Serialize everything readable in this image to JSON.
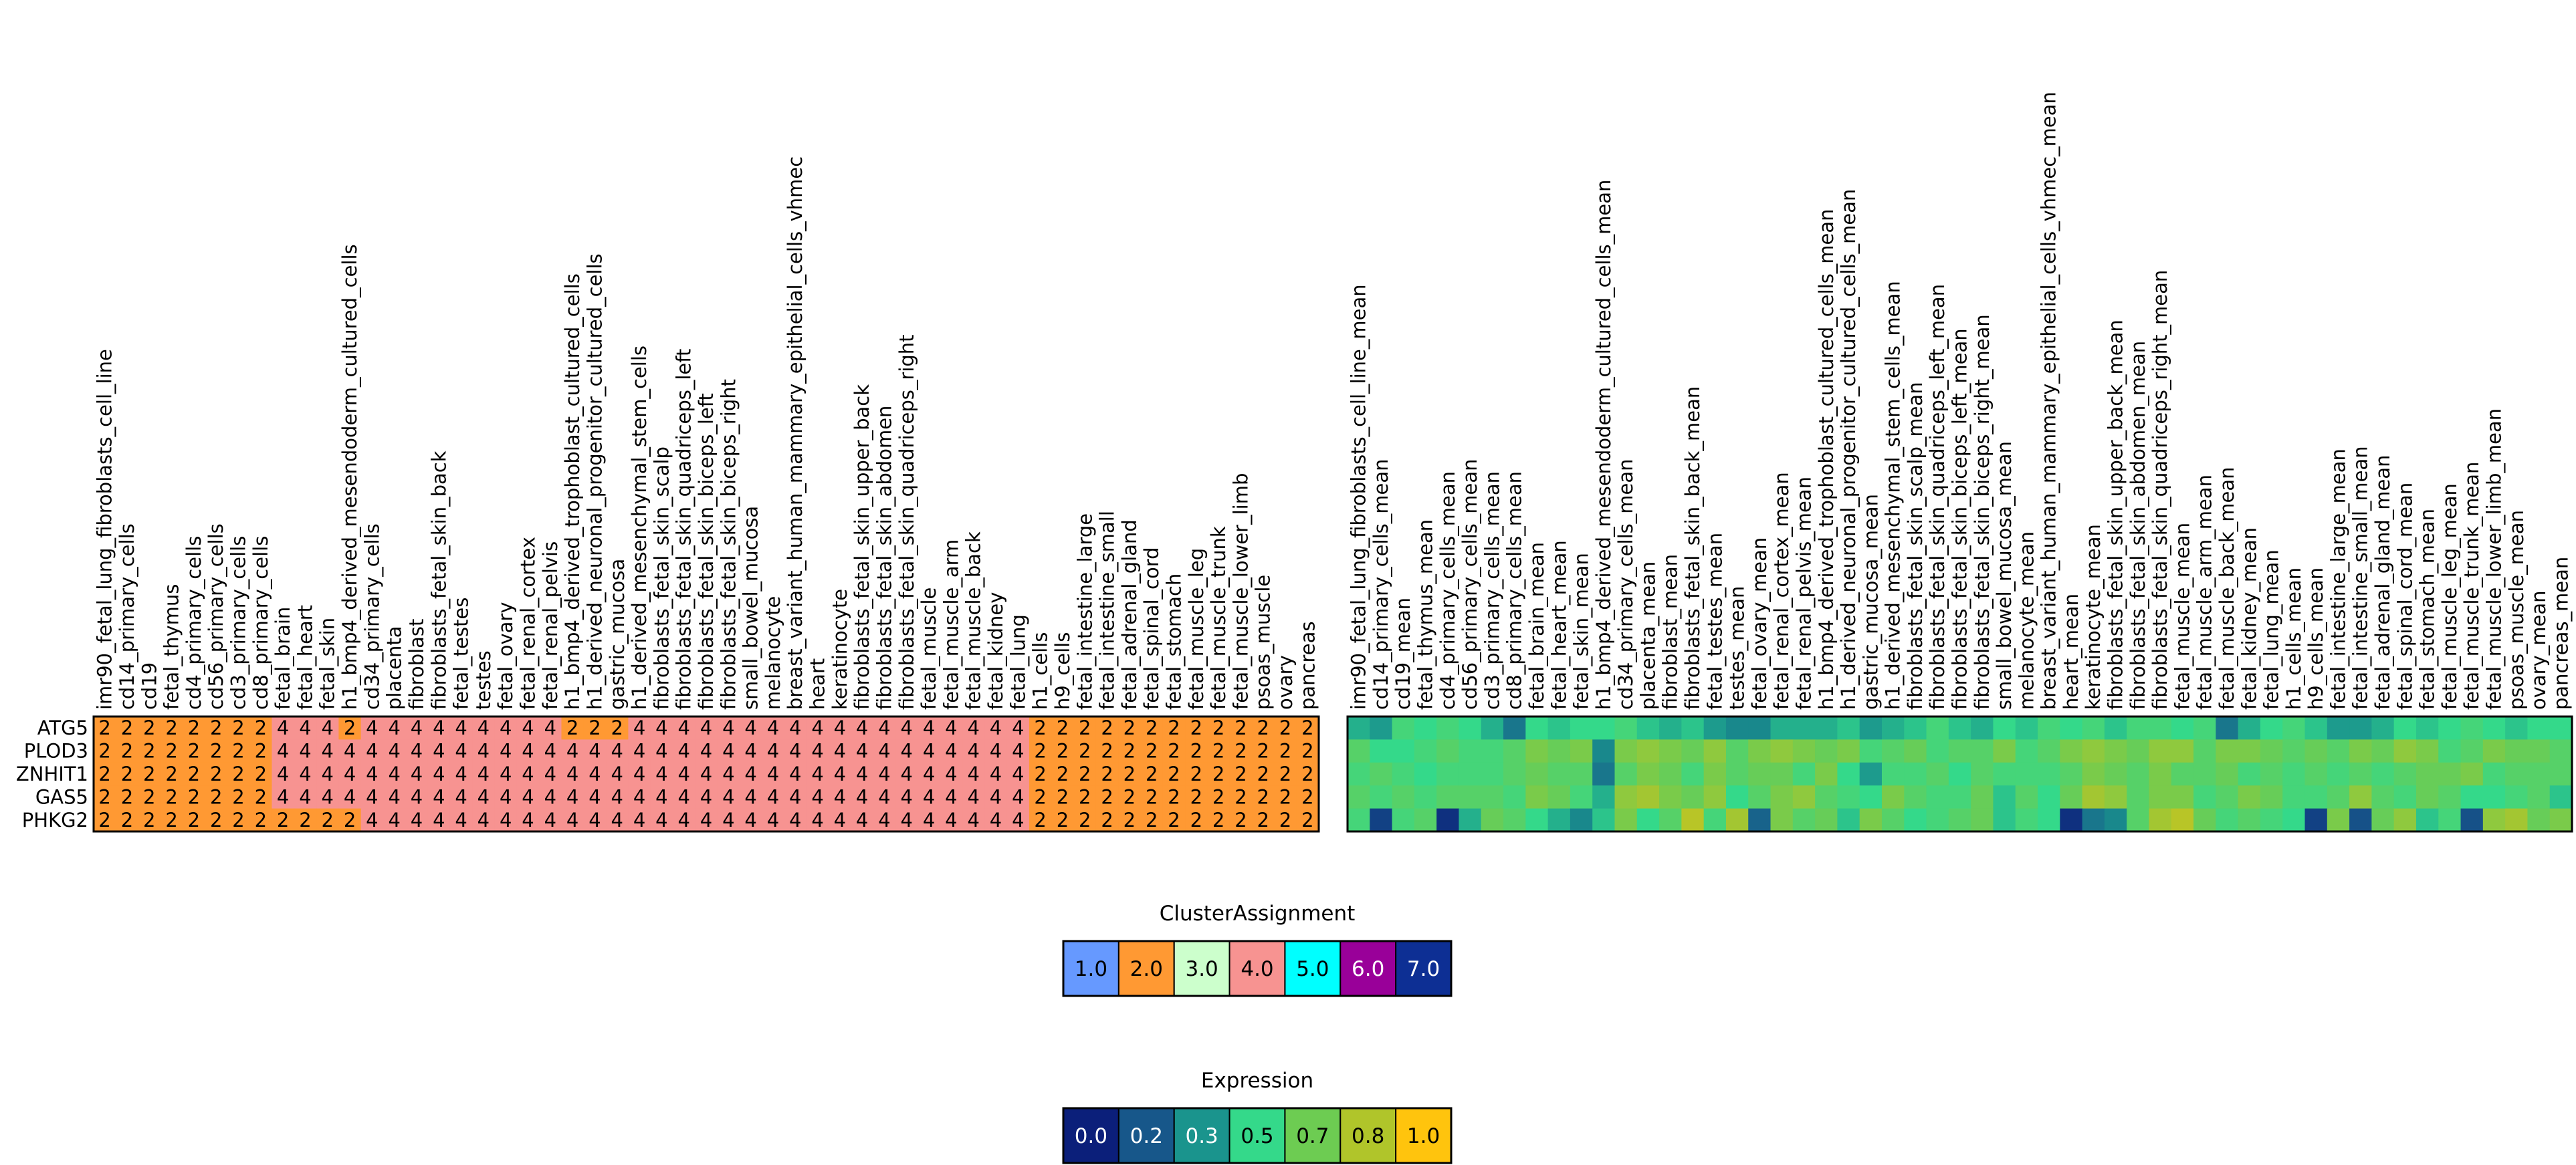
{
  "chart_data": [
    {
      "type": "heatmap",
      "rows": [
        "ATG5",
        "PLOD3",
        "ZNHIT1",
        "GAS5",
        "PHKG2"
      ],
      "columns": [
        "imr90_fetal_lung_fibroblasts_cell_line",
        "cd14_primary_cells",
        "cd19",
        "fetal_thymus",
        "cd4_primary_cells",
        "cd56_primary_cells",
        "cd3_primary_cells",
        "cd8_primary_cells",
        "fetal_brain",
        "fetal_heart",
        "fetal_skin",
        "h1_bmp4_derived_mesendoderm_cultured_cells",
        "cd34_primary_cells",
        "placenta",
        "fibroblast",
        "fibroblasts_fetal_skin_back",
        "fetal_testes",
        "testes",
        "fetal_ovary",
        "fetal_renal_cortex",
        "fetal_renal_pelvis",
        "h1_bmp4_derived_trophoblast_cultured_cells",
        "h1_derived_neuronal_progenitor_cultured_cells",
        "gastric_mucosa",
        "h1_derived_mesenchymal_stem_cells",
        "fibroblasts_fetal_skin_scalp",
        "fibroblasts_fetal_skin_quadriceps_left",
        "fibroblasts_fetal_skin_biceps_left",
        "fibroblasts_fetal_skin_biceps_right",
        "small_bowel_mucosa",
        "melanocyte",
        "breast_variant_human_mammary_epithelial_cells_vhmec",
        "heart",
        "keratinocyte",
        "fibroblasts_fetal_skin_upper_back",
        "fibroblasts_fetal_skin_abdomen",
        "fibroblasts_fetal_skin_quadriceps_right",
        "fetal_muscle",
        "fetal_muscle_arm",
        "fetal_muscle_back",
        "fetal_kidney",
        "fetal_lung",
        "h1_cells",
        "h9_cells",
        "fetal_intestine_large",
        "fetal_intestine_small",
        "fetal_adrenal_gland",
        "fetal_spinal_cord",
        "fetal_stomach",
        "fetal_muscle_leg",
        "fetal_muscle_trunk",
        "fetal_muscle_lower_limb",
        "psoas_muscle",
        "ovary",
        "pancreas"
      ],
      "values": [
        [
          2,
          2,
          2,
          2,
          2,
          2,
          2,
          2,
          4,
          4,
          4,
          2,
          4,
          4,
          4,
          4,
          4,
          4,
          4,
          4,
          4,
          2,
          2,
          2,
          4,
          4,
          4,
          4,
          4,
          4,
          4,
          4,
          4,
          4,
          4,
          4,
          4,
          4,
          4,
          4,
          4,
          4,
          2,
          2,
          2,
          2,
          2,
          2,
          2,
          2,
          2,
          2,
          2,
          2,
          2
        ],
        [
          2,
          2,
          2,
          2,
          2,
          2,
          2,
          2,
          4,
          4,
          4,
          4,
          4,
          4,
          4,
          4,
          4,
          4,
          4,
          4,
          4,
          4,
          4,
          4,
          4,
          4,
          4,
          4,
          4,
          4,
          4,
          4,
          4,
          4,
          4,
          4,
          4,
          4,
          4,
          4,
          4,
          4,
          2,
          2,
          2,
          2,
          2,
          2,
          2,
          2,
          2,
          2,
          2,
          2,
          2
        ],
        [
          2,
          2,
          2,
          2,
          2,
          2,
          2,
          2,
          4,
          4,
          4,
          4,
          4,
          4,
          4,
          4,
          4,
          4,
          4,
          4,
          4,
          4,
          4,
          4,
          4,
          4,
          4,
          4,
          4,
          4,
          4,
          4,
          4,
          4,
          4,
          4,
          4,
          4,
          4,
          4,
          4,
          4,
          2,
          2,
          2,
          2,
          2,
          2,
          2,
          2,
          2,
          2,
          2,
          2,
          2
        ],
        [
          2,
          2,
          2,
          2,
          2,
          2,
          2,
          2,
          4,
          4,
          4,
          4,
          4,
          4,
          4,
          4,
          4,
          4,
          4,
          4,
          4,
          4,
          4,
          4,
          4,
          4,
          4,
          4,
          4,
          4,
          4,
          4,
          4,
          4,
          4,
          4,
          4,
          4,
          4,
          4,
          4,
          4,
          2,
          2,
          2,
          2,
          2,
          2,
          2,
          2,
          2,
          2,
          2,
          2,
          2
        ],
        [
          2,
          2,
          2,
          2,
          2,
          2,
          2,
          2,
          2,
          2,
          2,
          2,
          4,
          4,
          4,
          4,
          4,
          4,
          4,
          4,
          4,
          4,
          4,
          4,
          4,
          4,
          4,
          4,
          4,
          4,
          4,
          4,
          4,
          4,
          4,
          4,
          4,
          4,
          4,
          4,
          4,
          4,
          2,
          2,
          2,
          2,
          2,
          2,
          2,
          2,
          2,
          2,
          2,
          2,
          2
        ]
      ],
      "cell_labels": true,
      "colorscale": "ClusterAssignment"
    },
    {
      "type": "heatmap",
      "rows": [
        "ATG5",
        "PLOD3",
        "ZNHIT1",
        "GAS5",
        "PHKG2"
      ],
      "columns": [
        "imr90_fetal_lung_fibroblasts_cell_line_mean",
        "cd14_primary_cells_mean",
        "cd19_mean",
        "fetal_thymus_mean",
        "cd4_primary_cells_mean",
        "cd56_primary_cells_mean",
        "cd3_primary_cells_mean",
        "cd8_primary_cells_mean",
        "fetal_brain_mean",
        "fetal_heart_mean",
        "fetal_skin_mean",
        "h1_bmp4_derived_mesendoderm_cultured_cells_mean",
        "cd34_primary_cells_mean",
        "placenta_mean",
        "fibroblast_mean",
        "fibroblasts_fetal_skin_back_mean",
        "fetal_testes_mean",
        "testes_mean",
        "fetal_ovary_mean",
        "fetal_renal_cortex_mean",
        "fetal_renal_pelvis_mean",
        "h1_bmp4_derived_trophoblast_cultured_cells_mean",
        "h1_derived_neuronal_progenitor_cultured_cells_mean",
        "gastric_mucosa_mean",
        "h1_derived_mesenchymal_stem_cells_mean",
        "fibroblasts_fetal_skin_scalp_mean",
        "fibroblasts_fetal_skin_quadriceps_left_mean",
        "fibroblasts_fetal_skin_biceps_left_mean",
        "fibroblasts_fetal_skin_biceps_right_mean",
        "small_bowel_mucosa_mean",
        "melanocyte_mean",
        "breast_variant_human_mammary_epithelial_cells_vhmec_mean",
        "heart_mean",
        "keratinocyte_mean",
        "fibroblasts_fetal_skin_upper_back_mean",
        "fibroblasts_fetal_skin_abdomen_mean",
        "fibroblasts_fetal_skin_quadriceps_right_mean",
        "fetal_muscle_mean",
        "fetal_muscle_arm_mean",
        "fetal_muscle_back_mean",
        "fetal_kidney_mean",
        "fetal_lung_mean",
        "h1_cells_mean",
        "h9_cells_mean",
        "fetal_intestine_large_mean",
        "fetal_intestine_small_mean",
        "fetal_adrenal_gland_mean",
        "fetal_spinal_cord_mean",
        "fetal_stomach_mean",
        "fetal_muscle_leg_mean",
        "fetal_muscle_trunk_mean",
        "fetal_muscle_lower_limb_mean",
        "psoas_muscle_mean",
        "ovary_mean",
        "pancreas_mean"
      ],
      "values": [
        [
          0.4,
          0.35,
          0.55,
          0.5,
          0.55,
          0.5,
          0.4,
          0.25,
          0.5,
          0.45,
          0.5,
          0.5,
          0.55,
          0.45,
          0.4,
          0.45,
          0.35,
          0.3,
          0.3,
          0.4,
          0.4,
          0.4,
          0.45,
          0.35,
          0.4,
          0.45,
          0.55,
          0.45,
          0.4,
          0.5,
          0.45,
          0.55,
          0.5,
          0.55,
          0.45,
          0.55,
          0.55,
          0.5,
          0.55,
          0.25,
          0.4,
          0.5,
          0.55,
          0.45,
          0.35,
          0.35,
          0.4,
          0.5,
          0.45,
          0.5,
          0.55,
          0.5,
          0.45,
          0.5,
          0.5
        ],
        [
          0.6,
          0.5,
          0.5,
          0.55,
          0.6,
          0.55,
          0.55,
          0.6,
          0.7,
          0.65,
          0.7,
          0.3,
          0.7,
          0.75,
          0.7,
          0.65,
          0.75,
          0.6,
          0.7,
          0.75,
          0.7,
          0.65,
          0.7,
          0.55,
          0.6,
          0.65,
          0.55,
          0.6,
          0.6,
          0.7,
          0.55,
          0.6,
          0.7,
          0.75,
          0.7,
          0.65,
          0.75,
          0.75,
          0.6,
          0.7,
          0.7,
          0.65,
          0.6,
          0.65,
          0.6,
          0.7,
          0.65,
          0.75,
          0.7,
          0.55,
          0.6,
          0.7,
          0.65,
          0.65,
          0.6
        ],
        [
          0.55,
          0.6,
          0.55,
          0.5,
          0.55,
          0.55,
          0.55,
          0.6,
          0.65,
          0.6,
          0.6,
          0.25,
          0.6,
          0.7,
          0.65,
          0.55,
          0.7,
          0.6,
          0.65,
          0.65,
          0.55,
          0.7,
          0.5,
          0.35,
          0.55,
          0.55,
          0.6,
          0.5,
          0.6,
          0.55,
          0.55,
          0.55,
          0.6,
          0.7,
          0.65,
          0.6,
          0.7,
          0.6,
          0.6,
          0.65,
          0.55,
          0.6,
          0.55,
          0.6,
          0.55,
          0.6,
          0.55,
          0.6,
          0.65,
          0.65,
          0.7,
          0.55,
          0.6,
          0.6,
          0.6
        ],
        [
          0.6,
          0.55,
          0.6,
          0.55,
          0.6,
          0.6,
          0.6,
          0.55,
          0.7,
          0.65,
          0.55,
          0.4,
          0.75,
          0.8,
          0.7,
          0.65,
          0.75,
          0.5,
          0.6,
          0.7,
          0.75,
          0.6,
          0.55,
          0.5,
          0.7,
          0.6,
          0.55,
          0.55,
          0.65,
          0.45,
          0.6,
          0.5,
          0.65,
          0.8,
          0.75,
          0.6,
          0.7,
          0.7,
          0.55,
          0.6,
          0.7,
          0.65,
          0.55,
          0.55,
          0.6,
          0.75,
          0.6,
          0.55,
          0.65,
          0.6,
          0.5,
          0.5,
          0.55,
          0.6,
          0.45
        ],
        [
          0.55,
          0.1,
          0.55,
          0.6,
          0.05,
          0.4,
          0.65,
          0.6,
          0.5,
          0.4,
          0.3,
          0.45,
          0.7,
          0.5,
          0.6,
          0.85,
          0.55,
          0.8,
          0.2,
          0.7,
          0.6,
          0.65,
          0.45,
          0.7,
          0.6,
          0.5,
          0.55,
          0.6,
          0.65,
          0.45,
          0.55,
          0.5,
          0.05,
          0.25,
          0.3,
          0.6,
          0.8,
          0.85,
          0.65,
          0.55,
          0.6,
          0.55,
          0.5,
          0.1,
          0.7,
          0.15,
          0.65,
          0.75,
          0.45,
          0.55,
          0.15,
          0.75,
          0.8,
          0.65,
          0.7
        ]
      ],
      "cell_labels": false,
      "colorscale": "Expression"
    }
  ],
  "legends": {
    "cluster": {
      "title": "ClusterAssignment",
      "items": [
        {
          "label": "1.0",
          "color": "#6699ff",
          "text_color": "#000000"
        },
        {
          "label": "2.0",
          "color": "#ff9933",
          "text_color": "#000000"
        },
        {
          "label": "3.0",
          "color": "#ccffcc",
          "text_color": "#000000"
        },
        {
          "label": "4.0",
          "color": "#f79391",
          "text_color": "#000000"
        },
        {
          "label": "5.0",
          "color": "#00ffff",
          "text_color": "#000000"
        },
        {
          "label": "6.0",
          "color": "#990099",
          "text_color": "#ffffff"
        },
        {
          "label": "7.0",
          "color": "#0d2f94",
          "text_color": "#ffffff"
        }
      ]
    },
    "expression": {
      "title": "Expression",
      "items": [
        {
          "label": "0.0",
          "color": "#0b1f7a",
          "text_color": "#ffffff"
        },
        {
          "label": "0.2",
          "color": "#17578a",
          "text_color": "#ffffff"
        },
        {
          "label": "0.3",
          "color": "#1a948d",
          "text_color": "#ffffff"
        },
        {
          "label": "0.5",
          "color": "#34d98a",
          "text_color": "#000000"
        },
        {
          "label": "0.7",
          "color": "#6dcc52",
          "text_color": "#000000"
        },
        {
          "label": "0.8",
          "color": "#b0c52a",
          "text_color": "#000000"
        },
        {
          "label": "1.0",
          "color": "#ffc40d",
          "text_color": "#000000"
        }
      ]
    }
  },
  "colors": {
    "cluster_2": "#ff9933",
    "cluster_4": "#f79391",
    "expression_stops": [
      "#0b1f7a",
      "#17578a",
      "#1a948d",
      "#34d98a",
      "#6dcc52",
      "#b0c52a",
      "#ffc40d"
    ]
  }
}
